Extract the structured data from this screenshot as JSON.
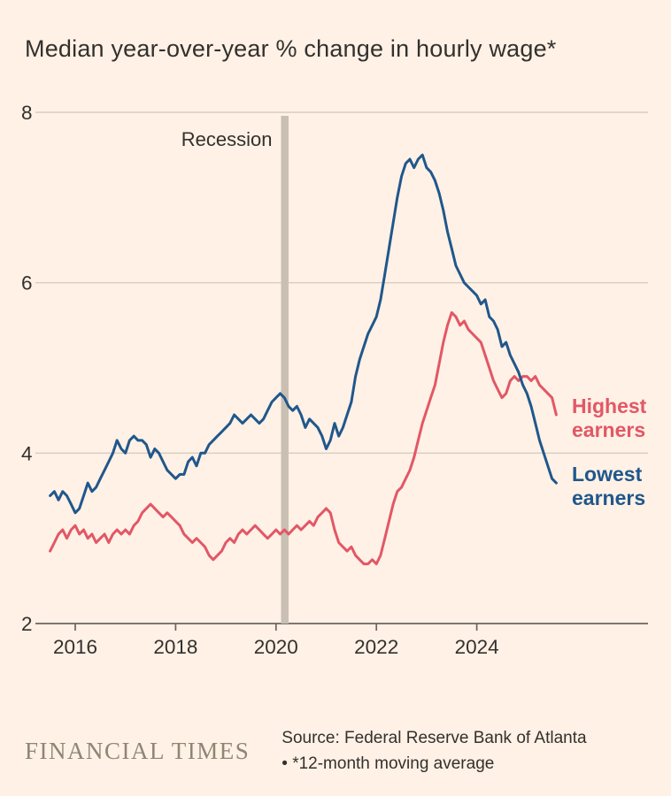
{
  "title": "Median year-over-year % change in hourly wage*",
  "chart_data": {
    "type": "line",
    "title": "Median year-over-year % change in hourly wage*",
    "x_start": 2015.5,
    "x_step_months": 1,
    "x_ticks": [
      2016,
      2018,
      2020,
      2022,
      2024
    ],
    "ylim": [
      2,
      8
    ],
    "y_ticks": [
      2,
      4,
      6,
      8
    ],
    "grid": "horizontal",
    "legend_position": "line-end-labels",
    "annotation": {
      "label": "Recession",
      "x_from": 2020.1,
      "x_to": 2020.25
    },
    "series": [
      {
        "name": "Highest earners",
        "label_lines": [
          "Highest",
          "earners"
        ],
        "color": "#e25766",
        "values": [
          2.85,
          2.95,
          3.05,
          3.1,
          3.0,
          3.1,
          3.15,
          3.05,
          3.1,
          3.0,
          3.05,
          2.95,
          3.0,
          3.05,
          2.95,
          3.05,
          3.1,
          3.05,
          3.1,
          3.05,
          3.15,
          3.2,
          3.3,
          3.35,
          3.4,
          3.35,
          3.3,
          3.25,
          3.3,
          3.25,
          3.2,
          3.15,
          3.05,
          3.0,
          2.95,
          3.0,
          2.95,
          2.9,
          2.8,
          2.75,
          2.8,
          2.85,
          2.95,
          3.0,
          2.95,
          3.05,
          3.1,
          3.05,
          3.1,
          3.15,
          3.1,
          3.05,
          3.0,
          3.05,
          3.1,
          3.05,
          3.1,
          3.05,
          3.1,
          3.15,
          3.1,
          3.15,
          3.2,
          3.15,
          3.25,
          3.3,
          3.35,
          3.3,
          3.1,
          2.95,
          2.9,
          2.85,
          2.9,
          2.8,
          2.75,
          2.7,
          2.7,
          2.75,
          2.7,
          2.8,
          3.0,
          3.2,
          3.4,
          3.55,
          3.6,
          3.7,
          3.8,
          3.95,
          4.15,
          4.35,
          4.5,
          4.65,
          4.8,
          5.05,
          5.3,
          5.5,
          5.65,
          5.6,
          5.5,
          5.55,
          5.45,
          5.4,
          5.35,
          5.3,
          5.15,
          5.0,
          4.85,
          4.75,
          4.65,
          4.7,
          4.85,
          4.9,
          4.85,
          4.9,
          4.9,
          4.85,
          4.9,
          4.8,
          4.75,
          4.7,
          4.65,
          4.45
        ]
      },
      {
        "name": "Lowest earners",
        "label_lines": [
          "Lowest",
          "earners"
        ],
        "color": "#20578c",
        "values": [
          3.5,
          3.55,
          3.45,
          3.55,
          3.5,
          3.4,
          3.3,
          3.35,
          3.5,
          3.65,
          3.55,
          3.6,
          3.7,
          3.8,
          3.9,
          4.0,
          4.15,
          4.05,
          4.0,
          4.15,
          4.2,
          4.15,
          4.15,
          4.1,
          3.95,
          4.05,
          4.0,
          3.9,
          3.8,
          3.75,
          3.7,
          3.75,
          3.75,
          3.9,
          3.95,
          3.85,
          4.0,
          4.0,
          4.1,
          4.15,
          4.2,
          4.25,
          4.3,
          4.35,
          4.45,
          4.4,
          4.35,
          4.4,
          4.45,
          4.4,
          4.35,
          4.4,
          4.5,
          4.6,
          4.65,
          4.7,
          4.65,
          4.55,
          4.5,
          4.55,
          4.45,
          4.3,
          4.4,
          4.35,
          4.3,
          4.2,
          4.05,
          4.15,
          4.35,
          4.2,
          4.3,
          4.45,
          4.6,
          4.9,
          5.1,
          5.25,
          5.4,
          5.5,
          5.6,
          5.8,
          6.1,
          6.4,
          6.7,
          7.0,
          7.25,
          7.4,
          7.45,
          7.35,
          7.45,
          7.5,
          7.35,
          7.3,
          7.2,
          7.05,
          6.85,
          6.6,
          6.4,
          6.2,
          6.1,
          6.0,
          5.95,
          5.9,
          5.85,
          5.75,
          5.8,
          5.6,
          5.55,
          5.45,
          5.25,
          5.3,
          5.15,
          5.05,
          4.95,
          4.8,
          4.7,
          4.55,
          4.35,
          4.15,
          4.0,
          3.85,
          3.7,
          3.65
        ]
      }
    ]
  },
  "colors": {
    "background": "#fff1e5",
    "grid": "#d8ccc0",
    "axis": "#6b645f",
    "text": "#33302e",
    "recession_band": "#c9bfb3",
    "highest_earners": "#e25766",
    "lowest_earners": "#20578c"
  },
  "footer": {
    "brand": "FINANCIAL TIMES",
    "source_line1": "Source: Federal Reserve Bank of Atlanta",
    "source_line2": "• *12-month moving average"
  }
}
